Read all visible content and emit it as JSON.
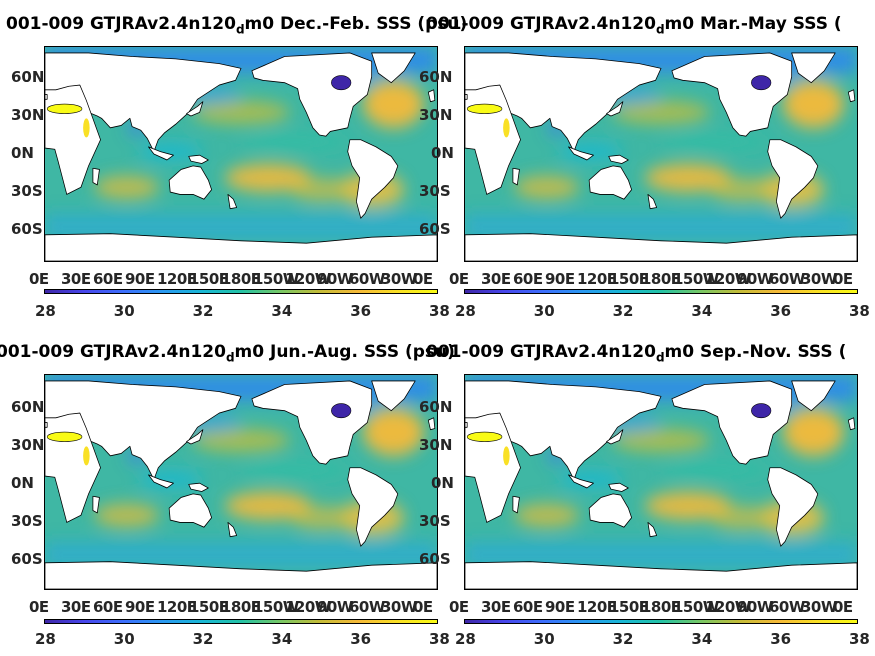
{
  "panels": [
    {
      "title_pre": "001-009 GTJRAv2.4n120",
      "title_sub": "d",
      "title_post": "m0 Dec.-Feb. SSS (psu)"
    },
    {
      "title_pre": "001-009 GTJRAv2.4n120",
      "title_sub": "d",
      "title_post": "m0 Mar.-May SSS ("
    },
    {
      "title_pre": "001-009 GTJRAv2.4n120",
      "title_sub": "d",
      "title_post": "m0 Jun.-Aug. SSS (psu)"
    },
    {
      "title_pre": "001-009 GTJRAv2.4n120",
      "title_sub": "d",
      "title_post": "m0 Sep.-Nov. SSS ("
    }
  ],
  "lat_labels": [
    "60N",
    "30N",
    "0N",
    "30S",
    "60S"
  ],
  "lon_labels": [
    "0E",
    "30E",
    "60E",
    "90E",
    "120E",
    "150E",
    "180E",
    "150W",
    "120W",
    "90W",
    "60W",
    "30W",
    "0E"
  ],
  "colorbar": {
    "ticks": [
      "28",
      "30",
      "32",
      "34",
      "36",
      "38"
    ],
    "colors": [
      "#3e26a8",
      "#4746eb",
      "#3d6ffd",
      "#2a99f2",
      "#1ab8d6",
      "#24c3a6",
      "#77c866",
      "#c4bc39",
      "#f6ba39",
      "#f9e025",
      "#f9fb15"
    ]
  },
  "colors": {
    "land": "#ffffff",
    "ocean_base": "#3fb7a4"
  }
}
